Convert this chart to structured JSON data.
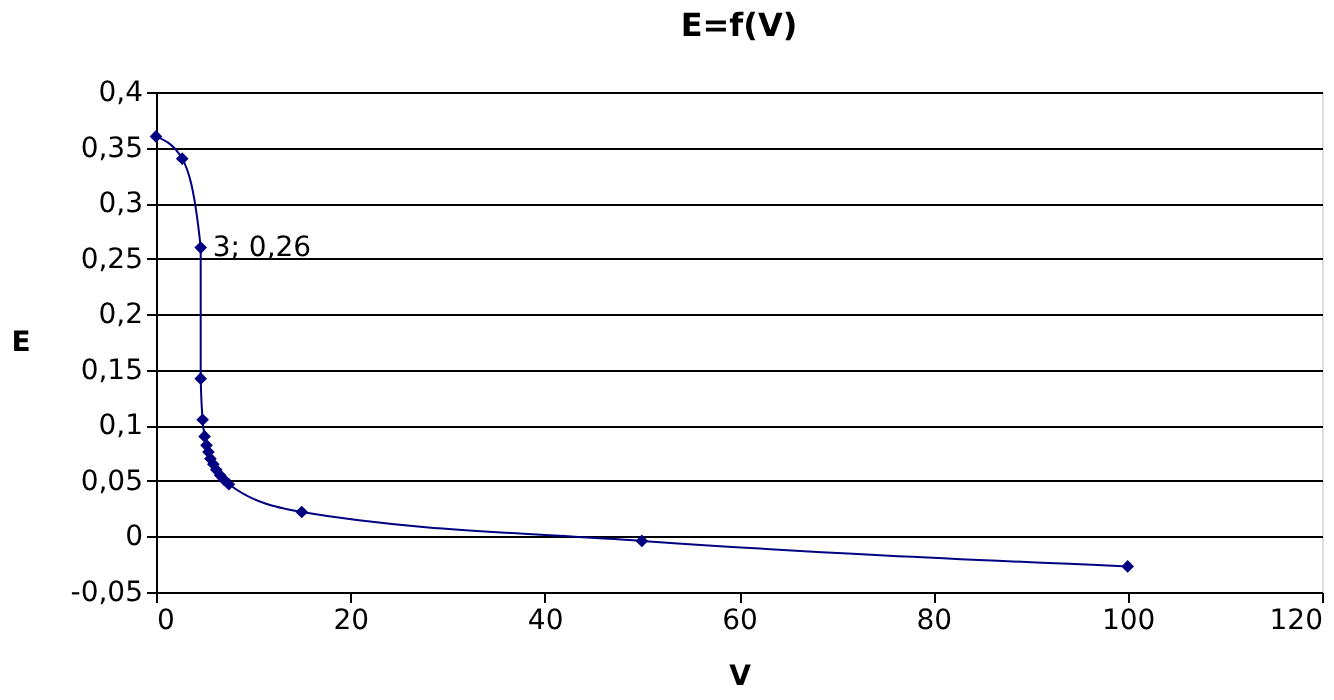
{
  "chart_data": {
    "type": "line",
    "title": "E=f(V)",
    "xlabel": "V",
    "ylabel": "E",
    "x": [
      0,
      2.7,
      4.6,
      4.6,
      4.8,
      5.0,
      5.2,
      5.4,
      5.6,
      5.9,
      6.2,
      6.6,
      7.0,
      7.5,
      15,
      50,
      100
    ],
    "series": [
      {
        "color": "#000080",
        "values": [
          0.36,
          0.34,
          0.26,
          0.142,
          0.105,
          0.09,
          0.082,
          0.076,
          0.07,
          0.065,
          0.06,
          0.055,
          0.051,
          0.047,
          0.022,
          -0.004,
          -0.027
        ]
      }
    ],
    "line_style": "solid",
    "marker": "diamond",
    "annotations": [
      {
        "text": "3; 0,26",
        "x": 4.6,
        "y": 0.26
      }
    ],
    "xlim": [
      0,
      120
    ],
    "xticks": [
      0,
      20,
      40,
      60,
      80,
      100,
      120
    ],
    "ylim": [
      -0.05,
      0.4
    ],
    "yticks": [
      {
        "value": -0.05,
        "label": "-0,05"
      },
      {
        "value": 0,
        "label": "0"
      },
      {
        "value": 0.05,
        "label": "0,05"
      },
      {
        "value": 0.1,
        "label": "0,1"
      },
      {
        "value": 0.15,
        "label": "0,15"
      },
      {
        "value": 0.2,
        "label": "0,2"
      },
      {
        "value": 0.25,
        "label": "0,25"
      },
      {
        "value": 0.3,
        "label": "0,3"
      },
      {
        "value": 0.35,
        "label": "0,35"
      },
      {
        "value": 0.4,
        "label": "0,4"
      }
    ],
    "grid": "y"
  }
}
